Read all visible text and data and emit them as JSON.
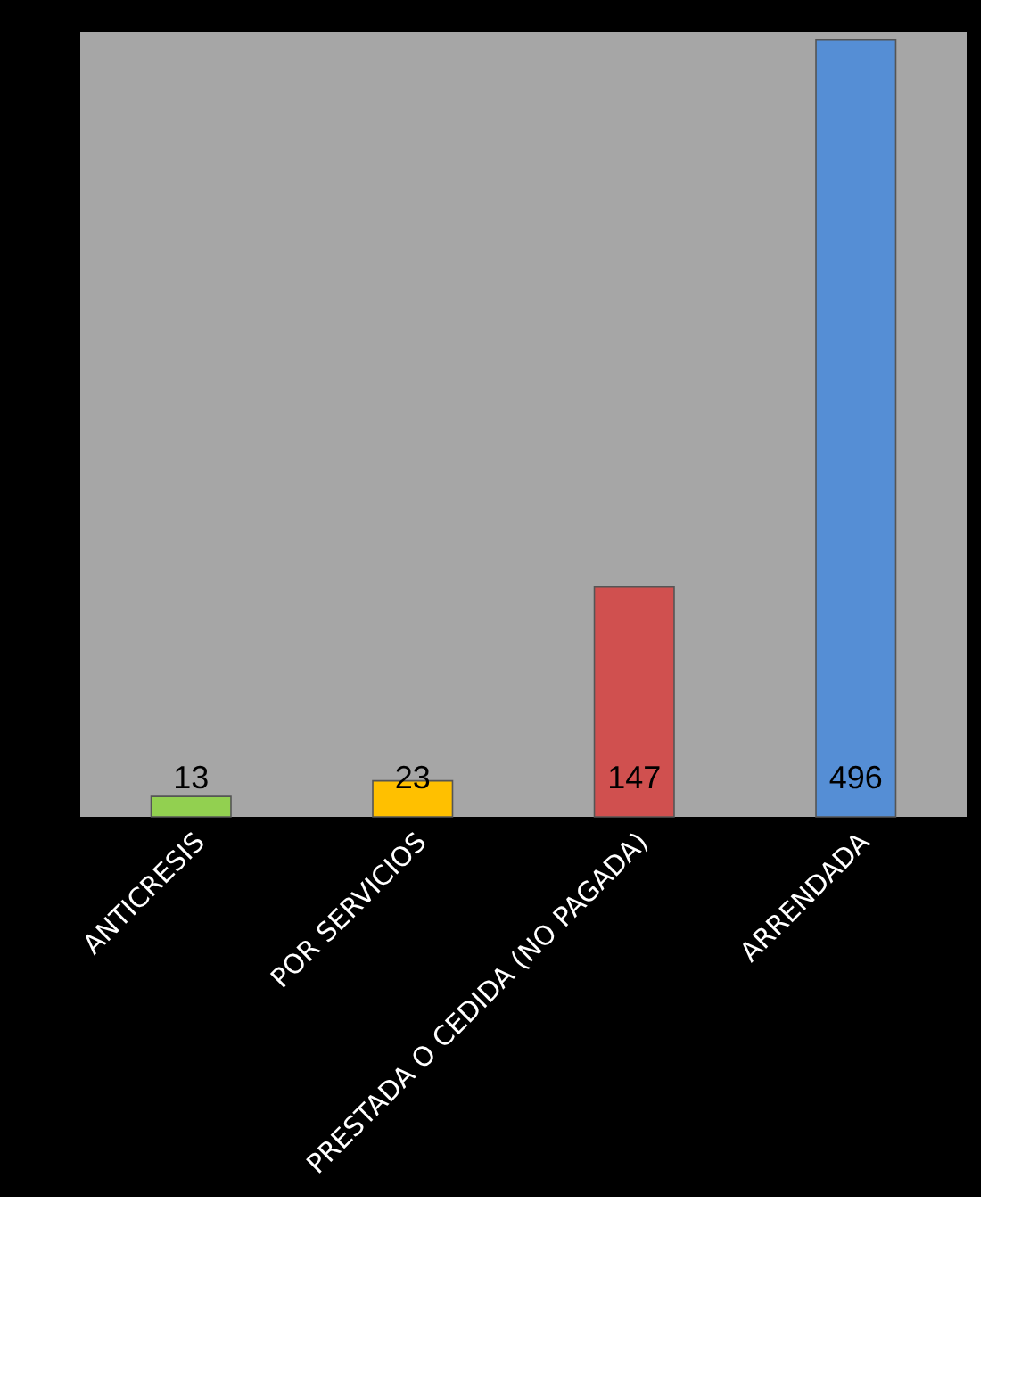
{
  "chart_data": {
    "type": "bar",
    "categories": [
      "ANTICRESIS",
      "POR SERVICIOS",
      "PRESTADA O CEDIDA (NO PAGADA)",
      "ARRENDADA"
    ],
    "values": [
      13,
      23,
      147,
      496
    ],
    "colors": [
      "#92d050",
      "#ffc000",
      "#d0504f",
      "#558ed5"
    ],
    "data_labels": true
  }
}
